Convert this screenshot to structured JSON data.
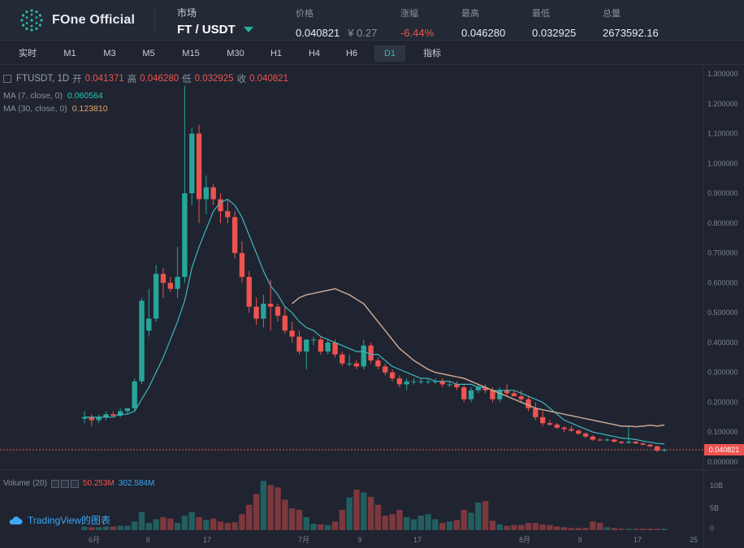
{
  "brand": {
    "name": "FOne Official"
  },
  "market": {
    "label": "市场",
    "pair": "FT / USDT"
  },
  "stats": [
    {
      "label": "价格",
      "value": "0.040821",
      "sub": "¥ 0.27",
      "color": "default"
    },
    {
      "label": "涨幅",
      "value": "-6.44%",
      "color": "red"
    },
    {
      "label": "最高",
      "value": "0.046280",
      "color": "default"
    },
    {
      "label": "最低",
      "value": "0.032925",
      "color": "default"
    },
    {
      "label": "总量",
      "value": "2673592.16",
      "color": "default"
    }
  ],
  "intervals": [
    "实时",
    "M1",
    "M3",
    "M5",
    "M15",
    "M30",
    "H1",
    "H4",
    "H6",
    "D1",
    "指标"
  ],
  "active_interval": "D1",
  "legend": {
    "symbol": "FTUSDT, 1D",
    "open_label": "开",
    "open": "0.041371",
    "high_label": "高",
    "high": "0.046280",
    "low_label": "低",
    "low": "0.032925",
    "close_label": "收",
    "close": "0.040821",
    "ma7_label": "MA (7, close, 0)",
    "ma7_value": "0.060564",
    "ma30_label": "MA (30, close, 0)",
    "ma30_value": "0.123810"
  },
  "volume_legend": {
    "label": "Volume (20)",
    "value1": "50.253M",
    "value2": "302.584M"
  },
  "tradingview": {
    "text": "TradingView的图表"
  },
  "current_price_tag": "0.040821",
  "colors": {
    "up": "#26a69a",
    "down": "#ef5350",
    "ma7": "#3fb7c0",
    "ma30": "#c9a692",
    "accent": "#2fb7a4",
    "background": "#1f2430"
  },
  "chart_data": {
    "type": "candlestick",
    "y_axis_labels": [
      "1.300000",
      "1.200000",
      "1.100000",
      "1.000000",
      "0.900000",
      "0.800000",
      "0.700000",
      "0.600000",
      "0.500000",
      "0.400000",
      "0.300000",
      "0.200000",
      "0.100000",
      "0.000000"
    ],
    "ylim": [
      0,
      1.3
    ],
    "x_axis_labels": [
      "6月",
      "9",
      "17",
      "7月",
      "9",
      "17",
      "8月",
      "9",
      "17",
      "25"
    ],
    "volume_axis_labels": [
      "10B",
      "5B",
      "0"
    ],
    "candles": [
      [
        0.145,
        0.17,
        0.13,
        0.15
      ],
      [
        0.15,
        0.16,
        0.12,
        0.14
      ],
      [
        0.14,
        0.16,
        0.13,
        0.15
      ],
      [
        0.15,
        0.17,
        0.14,
        0.16
      ],
      [
        0.16,
        0.17,
        0.15,
        0.155
      ],
      [
        0.155,
        0.18,
        0.15,
        0.17
      ],
      [
        0.17,
        0.18,
        0.16,
        0.18
      ],
      [
        0.18,
        0.28,
        0.17,
        0.27
      ],
      [
        0.27,
        0.55,
        0.26,
        0.54
      ],
      [
        0.44,
        0.58,
        0.42,
        0.48
      ],
      [
        0.48,
        0.66,
        0.47,
        0.63
      ],
      [
        0.63,
        0.65,
        0.55,
        0.6
      ],
      [
        0.6,
        0.62,
        0.57,
        0.58
      ],
      [
        0.58,
        0.72,
        0.55,
        0.62
      ],
      [
        0.62,
        1.26,
        0.6,
        0.9
      ],
      [
        0.9,
        1.12,
        0.86,
        1.1
      ],
      [
        1.1,
        1.13,
        0.8,
        0.88
      ],
      [
        0.88,
        0.96,
        0.83,
        0.92
      ],
      [
        0.92,
        0.93,
        0.86,
        0.88
      ],
      [
        0.88,
        0.9,
        0.8,
        0.84
      ],
      [
        0.84,
        0.88,
        0.8,
        0.82
      ],
      [
        0.82,
        0.84,
        0.68,
        0.7
      ],
      [
        0.7,
        0.74,
        0.6,
        0.62
      ],
      [
        0.62,
        0.64,
        0.5,
        0.52
      ],
      [
        0.52,
        0.55,
        0.46,
        0.48
      ],
      [
        0.48,
        0.56,
        0.45,
        0.53
      ],
      [
        0.53,
        0.61,
        0.44,
        0.52
      ],
      [
        0.52,
        0.53,
        0.47,
        0.49
      ],
      [
        0.49,
        0.52,
        0.43,
        0.44
      ],
      [
        0.44,
        0.47,
        0.4,
        0.42
      ],
      [
        0.42,
        0.44,
        0.36,
        0.37
      ],
      [
        0.37,
        0.41,
        0.31,
        0.41
      ],
      [
        0.41,
        0.42,
        0.39,
        0.41
      ],
      [
        0.41,
        0.42,
        0.36,
        0.37
      ],
      [
        0.37,
        0.41,
        0.36,
        0.4
      ],
      [
        0.4,
        0.41,
        0.35,
        0.36
      ],
      [
        0.36,
        0.37,
        0.32,
        0.33
      ],
      [
        0.33,
        0.36,
        0.32,
        0.33
      ],
      [
        0.33,
        0.34,
        0.31,
        0.32
      ],
      [
        0.32,
        0.41,
        0.31,
        0.39
      ],
      [
        0.39,
        0.4,
        0.33,
        0.34
      ],
      [
        0.34,
        0.35,
        0.31,
        0.32
      ],
      [
        0.32,
        0.33,
        0.29,
        0.3
      ],
      [
        0.3,
        0.31,
        0.27,
        0.28
      ],
      [
        0.28,
        0.29,
        0.25,
        0.26
      ],
      [
        0.26,
        0.28,
        0.24,
        0.27
      ],
      [
        0.27,
        0.28,
        0.26,
        0.27
      ],
      [
        0.27,
        0.28,
        0.26,
        0.27
      ],
      [
        0.27,
        0.28,
        0.26,
        0.27
      ],
      [
        0.27,
        0.28,
        0.26,
        0.27
      ],
      [
        0.27,
        0.28,
        0.25,
        0.26
      ],
      [
        0.26,
        0.27,
        0.25,
        0.26
      ],
      [
        0.26,
        0.27,
        0.24,
        0.25
      ],
      [
        0.25,
        0.26,
        0.2,
        0.21
      ],
      [
        0.21,
        0.25,
        0.2,
        0.24
      ],
      [
        0.24,
        0.26,
        0.23,
        0.25
      ],
      [
        0.25,
        0.26,
        0.23,
        0.24
      ],
      [
        0.24,
        0.25,
        0.2,
        0.21
      ],
      [
        0.21,
        0.25,
        0.2,
        0.24
      ],
      [
        0.24,
        0.26,
        0.22,
        0.23
      ],
      [
        0.23,
        0.24,
        0.22,
        0.22
      ],
      [
        0.22,
        0.24,
        0.2,
        0.21
      ],
      [
        0.21,
        0.22,
        0.17,
        0.18
      ],
      [
        0.18,
        0.2,
        0.14,
        0.15
      ],
      [
        0.15,
        0.17,
        0.12,
        0.13
      ],
      [
        0.13,
        0.14,
        0.12,
        0.125
      ],
      [
        0.125,
        0.13,
        0.11,
        0.115
      ],
      [
        0.115,
        0.12,
        0.1,
        0.11
      ],
      [
        0.11,
        0.12,
        0.1,
        0.105
      ],
      [
        0.105,
        0.11,
        0.09,
        0.095
      ],
      [
        0.095,
        0.1,
        0.08,
        0.085
      ],
      [
        0.085,
        0.09,
        0.07,
        0.075
      ],
      [
        0.075,
        0.08,
        0.07,
        0.072
      ],
      [
        0.072,
        0.08,
        0.07,
        0.075
      ],
      [
        0.075,
        0.078,
        0.065,
        0.068
      ],
      [
        0.068,
        0.07,
        0.06,
        0.064
      ],
      [
        0.064,
        0.12,
        0.06,
        0.068
      ],
      [
        0.068,
        0.07,
        0.06,
        0.062
      ],
      [
        0.062,
        0.065,
        0.055,
        0.058
      ],
      [
        0.058,
        0.06,
        0.05,
        0.052
      ],
      [
        0.052,
        0.055,
        0.033,
        0.038
      ],
      [
        0.041,
        0.046,
        0.033,
        0.041
      ]
    ],
    "ma7": [
      0.15,
      0.15,
      0.15,
      0.15,
      0.15,
      0.16,
      0.16,
      0.17,
      0.21,
      0.25,
      0.3,
      0.35,
      0.41,
      0.47,
      0.54,
      0.65,
      0.72,
      0.78,
      0.84,
      0.87,
      0.88,
      0.86,
      0.82,
      0.76,
      0.7,
      0.64,
      0.59,
      0.56,
      0.52,
      0.5,
      0.47,
      0.45,
      0.44,
      0.42,
      0.41,
      0.4,
      0.39,
      0.38,
      0.37,
      0.37,
      0.36,
      0.36,
      0.34,
      0.32,
      0.31,
      0.3,
      0.29,
      0.28,
      0.28,
      0.27,
      0.27,
      0.27,
      0.26,
      0.26,
      0.26,
      0.25,
      0.25,
      0.24,
      0.24,
      0.24,
      0.24,
      0.23,
      0.22,
      0.21,
      0.2,
      0.18,
      0.16,
      0.14,
      0.13,
      0.12,
      0.11,
      0.1,
      0.095,
      0.09,
      0.085,
      0.08,
      0.078,
      0.075,
      0.07,
      0.066,
      0.062,
      0.06
    ],
    "ma30_start_index": 29,
    "ma30": [
      0.53,
      0.55,
      0.56,
      0.565,
      0.57,
      0.575,
      0.58,
      0.57,
      0.56,
      0.545,
      0.53,
      0.5,
      0.47,
      0.44,
      0.41,
      0.38,
      0.36,
      0.34,
      0.325,
      0.31,
      0.3,
      0.295,
      0.29,
      0.285,
      0.28,
      0.27,
      0.26,
      0.25,
      0.24,
      0.23,
      0.22,
      0.21,
      0.2,
      0.19,
      0.18,
      0.175,
      0.17,
      0.165,
      0.16,
      0.155,
      0.15,
      0.145,
      0.14,
      0.135,
      0.13,
      0.125,
      0.12,
      0.12,
      0.118,
      0.12,
      0.123,
      0.12,
      0.124
    ],
    "volume": [
      0.5,
      0.4,
      0.4,
      0.5,
      0.5,
      0.6,
      0.6,
      1.2,
      2.5,
      1.0,
      1.5,
      1.8,
      1.6,
      1.0,
      2.0,
      2.5,
      1.8,
      1.4,
      1.6,
      1.2,
      1.0,
      1.1,
      2.2,
      3.5,
      5.0,
      6.8,
      6.2,
      5.9,
      4.2,
      3.0,
      2.8,
      1.8,
      0.9,
      0.8,
      0.7,
      1.2,
      2.8,
      4.5,
      5.6,
      5.2,
      4.6,
      3.5,
      2.0,
      2.2,
      2.8,
      1.8,
      1.5,
      2.0,
      2.2,
      1.5,
      1.0,
      1.2,
      1.4,
      2.8,
      2.4,
      3.8,
      4.0,
      1.3,
      0.8,
      0.6,
      0.7,
      0.7,
      1.0,
      1.0,
      0.8,
      0.7,
      0.5,
      0.4,
      0.3,
      0.3,
      0.3,
      1.2,
      1.0,
      0.4,
      0.3,
      0.2,
      0.2,
      0.2,
      0.2,
      0.2,
      0.2,
      0.2
    ]
  }
}
